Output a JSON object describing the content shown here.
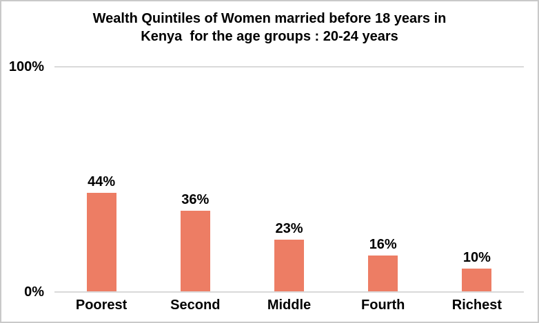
{
  "window": {
    "background_color": "#FFFFFF",
    "frame_border_color": "#C9C9C9"
  },
  "chart_data": {
    "type": "bar",
    "title": "Wealth Quintiles of Women married before 18 years in Kenya  for the age groups : 20-24 years",
    "title_lines": [
      "Wealth Quintiles of Women married before 18 years in",
      "Kenya  for the age groups : 20-24 years"
    ],
    "categories": [
      "Poorest",
      "Second",
      "Middle",
      "Fourth",
      "Richest"
    ],
    "values": [
      44,
      36,
      23,
      16,
      10
    ],
    "value_labels": [
      "44%",
      "36%",
      "23%",
      "16%",
      "10%"
    ],
    "xlabel": "",
    "ylabel": "",
    "ylim": [
      0,
      100
    ],
    "y_tick_top": "100%",
    "y_tick_bottom": "0%",
    "grid": "horizontal line at 100% and baseline at 0% only",
    "legend": "none",
    "colors": {
      "bar": "#ED7D64",
      "gridline": "#D9D9D9",
      "text": "#000000"
    }
  }
}
